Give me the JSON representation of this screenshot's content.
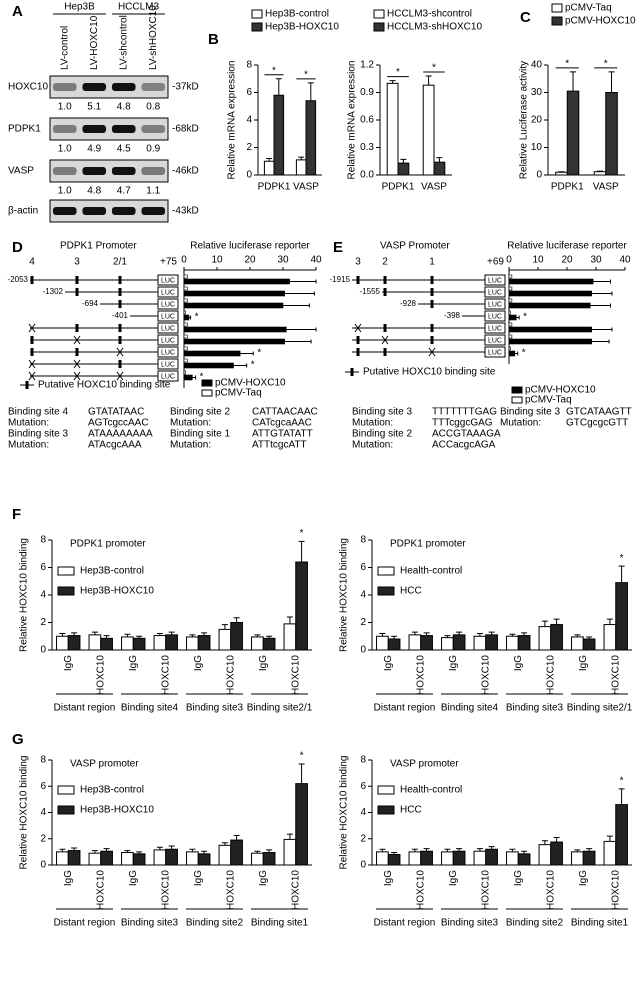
{
  "panel_labels": [
    "A",
    "B",
    "C",
    "D",
    "E",
    "F",
    "G"
  ],
  "blot": {
    "groups": [
      "Hep3B",
      "HCCLM3"
    ],
    "lanes": [
      "LV-control",
      "LV-HOXC10",
      "LV-shcontrol",
      "LV-shHOXC10"
    ],
    "rows": [
      {
        "label": "HOXC10",
        "size": "-37kD",
        "quant": [
          "1.0",
          "5.1",
          "4.8",
          "0.8"
        ]
      },
      {
        "label": "PDPK1",
        "size": "-68kD",
        "quant": [
          "1.0",
          "4.9",
          "4.5",
          "0.9"
        ]
      },
      {
        "label": "VASP",
        "size": "-46kD",
        "quant": [
          "1.0",
          "4.8",
          "4.7",
          "1.1"
        ]
      },
      {
        "label": "β-actin",
        "size": "-43kD"
      }
    ]
  },
  "sequence_tables": [
    [
      [
        "Binding site 4",
        "GTATATAAC",
        "Binding site 2",
        "CATTAACAAC"
      ],
      [
        "Mutation:",
        "AGTcgccAAC",
        "Mutation:",
        "CATcgcaAAC"
      ],
      [
        "Binding site 3",
        "ATAAAAAAAA",
        "Binding site 1",
        "ATTGTATATT"
      ],
      [
        "Mutation:",
        "ATAcgcAAA",
        "Mutation:",
        "ATTtcgcATT"
      ]
    ],
    [
      [
        "Binding site 3",
        "TTTTTTTGAG",
        "Binding site 3",
        "GTCATAAGTT"
      ],
      [
        "Mutation:",
        "TTTcggcGAG",
        "Mutation:",
        "GTCgcgcGTT"
      ],
      [
        "Binding site 2",
        "ACCGTAAAGA"
      ],
      [
        "Mutation:",
        "ACCacgcAGA"
      ]
    ]
  ],
  "chart_data": [
    {
      "type": "bar",
      "y_label": "Relative mRNA expression",
      "categories": [
        "PDPK1",
        "VASP"
      ],
      "series": [
        {
          "name": "Hep3B-control",
          "color": "#ffffff",
          "values": [
            1.0,
            1.1
          ],
          "errors": [
            0.2,
            0.2
          ]
        },
        {
          "name": "Hep3B-HOXC10",
          "color": "#333333",
          "values": [
            5.8,
            5.4
          ],
          "errors": [
            1.2,
            1.3
          ]
        }
      ],
      "significance": [
        "*",
        "*"
      ],
      "ylim": [
        0,
        8
      ],
      "yticks": [
        0,
        2,
        4,
        6,
        8
      ]
    },
    {
      "type": "bar",
      "y_label": "Relative mRNA expression",
      "categories": [
        "PDPK1",
        "VASP"
      ],
      "series": [
        {
          "name": "HCCLM3-shcontrol",
          "color": "#ffffff",
          "values": [
            1.0,
            0.98
          ],
          "errors": [
            0.03,
            0.1
          ]
        },
        {
          "name": "HCCLM3-shHOXC10",
          "color": "#333333",
          "values": [
            0.13,
            0.14
          ],
          "errors": [
            0.04,
            0.05
          ]
        }
      ],
      "significance": [
        "*",
        "*"
      ],
      "ylim": [
        0,
        1.2
      ],
      "yticks": [
        {
          "value": 0,
          "label": "0.0"
        },
        0.3,
        0.6,
        0.9,
        1.2
      ]
    },
    {
      "type": "bar",
      "y_label": "Relative Luciferase activity",
      "categories": [
        "PDPK1",
        "VASP"
      ],
      "series": [
        {
          "name": "pCMV-Taq",
          "color": "#ffffff",
          "values": [
            1.0,
            1.2
          ],
          "errors": [
            0.2,
            0.2
          ]
        },
        {
          "name": "pCMV-HOXC10",
          "color": "#333333",
          "values": [
            30.5,
            30
          ],
          "errors": [
            7,
            7.5
          ]
        }
      ],
      "significance": [
        "*",
        "*"
      ],
      "ylim": [
        0,
        40
      ],
      "yticks": [
        0,
        10,
        20,
        30,
        40
      ]
    },
    {
      "type": "hbar",
      "promoter": "PDPK1 Promoter",
      "sites": [
        "4",
        "3",
        "2/1"
      ],
      "tss": "+75",
      "reporter": "LUC",
      "x_label": "Relative luciferase reporter",
      "site_legend": "Putative HOXC10 binding site",
      "categories": [
        "-2053",
        "-1302",
        "-694",
        "-401",
        null,
        null,
        null,
        null,
        null
      ],
      "series": [
        {
          "name": "pCMV-HOXC10",
          "color": "#000000",
          "values": [
            32,
            30.5,
            30,
            1.5,
            31,
            30.5,
            17,
            15,
            2.5
          ],
          "errors": [
            8,
            9,
            8,
            0.5,
            9,
            8,
            4,
            4,
            1
          ]
        },
        {
          "name": "pCMV-Taq",
          "color": "#ffffff",
          "values": [
            1,
            1,
            1,
            0.5,
            1,
            1,
            1,
            1,
            0.5
          ]
        }
      ],
      "significance": [
        null,
        null,
        null,
        "*",
        null,
        null,
        "*",
        "*",
        "*"
      ],
      "xlim": [
        0,
        40
      ],
      "xticks": [
        0,
        10,
        20,
        30,
        40
      ]
    },
    {
      "type": "hbar",
      "promoter": "VASP Promoter",
      "sites": [
        "3",
        "2",
        "1"
      ],
      "tss": "+69",
      "reporter": "LUC",
      "x_label": "Relative luciferase reporter",
      "site_legend": "Putative HOXC10 binding site",
      "categories": [
        "-1915",
        "-1555",
        "-928",
        "-398",
        null,
        null,
        null
      ],
      "series": [
        {
          "name": "pCMV-HOXC10",
          "color": "#000000",
          "values": [
            29,
            28.5,
            28,
            2.5,
            28.5,
            28.5,
            2
          ],
          "errors": [
            6,
            7,
            7,
            1,
            7,
            6,
            1
          ]
        },
        {
          "name": "pCMV-Taq",
          "color": "#ffffff",
          "values": [
            1,
            1,
            1,
            0.5,
            1,
            1,
            0.5
          ]
        }
      ],
      "significance": [
        null,
        null,
        null,
        "*",
        null,
        null,
        "*"
      ],
      "xlim": [
        0,
        40
      ],
      "xticks": [
        0,
        10,
        20,
        30,
        40
      ]
    },
    {
      "type": "bar",
      "title": "PDPK1 promoter",
      "y_label": "Relative HOXC10 binding",
      "categories": [
        "IgG",
        "HOXC10",
        "IgG",
        "HOXC10",
        "IgG",
        "HOXC10",
        "IgG",
        "HOXC10"
      ],
      "groups": [
        "Distant region",
        "Binding site4",
        "Binding site3",
        "Binding site2/1"
      ],
      "series": [
        {
          "name": "Hep3B-control",
          "color": "#ffffff",
          "values": [
            1.0,
            1.1,
            0.95,
            1.05,
            0.95,
            1.5,
            0.95,
            1.9
          ],
          "errors": [
            0.2,
            0.2,
            0.2,
            0.15,
            0.15,
            0.35,
            0.15,
            0.5
          ]
        },
        {
          "name": "Hep3B-HOXC10",
          "color": "#222222",
          "values": [
            1.05,
            0.85,
            0.85,
            1.1,
            1.05,
            2.0,
            0.85,
            6.4
          ],
          "errors": [
            0.2,
            0.2,
            0.15,
            0.2,
            0.2,
            0.35,
            0.15,
            1.5
          ]
        }
      ],
      "significance": [
        null,
        null,
        null,
        null,
        null,
        null,
        null,
        "*"
      ],
      "ylim": [
        0,
        8
      ],
      "yticks": [
        0,
        2,
        4,
        6,
        8
      ]
    },
    {
      "type": "bar",
      "title": "PDPK1 promoter",
      "y_label": "Relative HOXC10 binding",
      "categories": [
        "IgG",
        "HOXC10",
        "IgG",
        "HOXC10",
        "IgG",
        "HOXC10",
        "IgG",
        "HOXC10"
      ],
      "groups": [
        "Distant region",
        "Binding site4",
        "Binding site3",
        "Binding site2/1"
      ],
      "series": [
        {
          "name": "Health-control",
          "color": "#ffffff",
          "values": [
            1.0,
            1.1,
            0.9,
            1.0,
            1.0,
            1.7,
            0.95,
            1.85
          ],
          "errors": [
            0.2,
            0.2,
            0.15,
            0.2,
            0.15,
            0.4,
            0.15,
            0.4
          ]
        },
        {
          "name": "HCC",
          "color": "#222222",
          "values": [
            0.8,
            1.05,
            1.1,
            1.1,
            1.05,
            1.85,
            0.8,
            4.9
          ],
          "errors": [
            0.2,
            0.2,
            0.2,
            0.2,
            0.2,
            0.4,
            0.15,
            1.2
          ]
        }
      ],
      "significance": [
        null,
        null,
        null,
        null,
        null,
        null,
        null,
        "*"
      ],
      "ylim": [
        0,
        8
      ],
      "yticks": [
        0,
        2,
        4,
        6,
        8
      ]
    },
    {
      "type": "bar",
      "title": "VASP  promoter",
      "y_label": "Relative HOXC10 binding",
      "categories": [
        "IgG",
        "HOXC10",
        "IgG",
        "HOXC10",
        "IgG",
        "HOXC10",
        "IgG",
        "HOXC10"
      ],
      "groups": [
        "Distant region",
        "Binding site3",
        "Binding site2",
        "Binding site1"
      ],
      "series": [
        {
          "name": "Hep3B-control",
          "color": "#ffffff",
          "values": [
            1.0,
            0.9,
            0.95,
            1.15,
            1.0,
            1.5,
            0.9,
            1.95
          ],
          "errors": [
            0.2,
            0.2,
            0.15,
            0.2,
            0.2,
            0.2,
            0.15,
            0.4
          ]
        },
        {
          "name": "Hep3B-HOXC10",
          "color": "#222222",
          "values": [
            1.1,
            1.05,
            0.85,
            1.2,
            0.85,
            1.9,
            0.95,
            6.2
          ],
          "errors": [
            0.2,
            0.2,
            0.15,
            0.25,
            0.2,
            0.35,
            0.2,
            1.5
          ]
        }
      ],
      "significance": [
        null,
        null,
        null,
        null,
        null,
        null,
        null,
        "*"
      ],
      "ylim": [
        0,
        8
      ],
      "yticks": [
        0,
        2,
        4,
        6,
        8
      ]
    },
    {
      "type": "bar",
      "title": "VASP  promoter",
      "y_label": "Relative HOXC10 binding",
      "categories": [
        "IgG",
        "HOXC10",
        "IgG",
        "HOXC10",
        "IgG",
        "HOXC10",
        "IgG",
        "HOXC10"
      ],
      "groups": [
        "Distant region",
        "Binding site3",
        "Binding site2",
        "Binding site1"
      ],
      "series": [
        {
          "name": "Health-control",
          "color": "#ffffff",
          "values": [
            1.0,
            1.0,
            1.0,
            1.05,
            1.0,
            1.55,
            1.0,
            1.8
          ],
          "errors": [
            0.2,
            0.2,
            0.2,
            0.2,
            0.2,
            0.3,
            0.15,
            0.4
          ]
        },
        {
          "name": "HCC",
          "color": "#222222",
          "values": [
            0.8,
            1.05,
            1.05,
            1.2,
            0.85,
            1.75,
            1.05,
            4.6
          ],
          "errors": [
            0.15,
            0.2,
            0.2,
            0.2,
            0.2,
            0.35,
            0.2,
            1.2
          ]
        }
      ],
      "significance": [
        null,
        null,
        null,
        null,
        null,
        null,
        null,
        "*"
      ],
      "ylim": [
        0,
        8
      ],
      "yticks": [
        0,
        2,
        4,
        6,
        8
      ]
    }
  ]
}
